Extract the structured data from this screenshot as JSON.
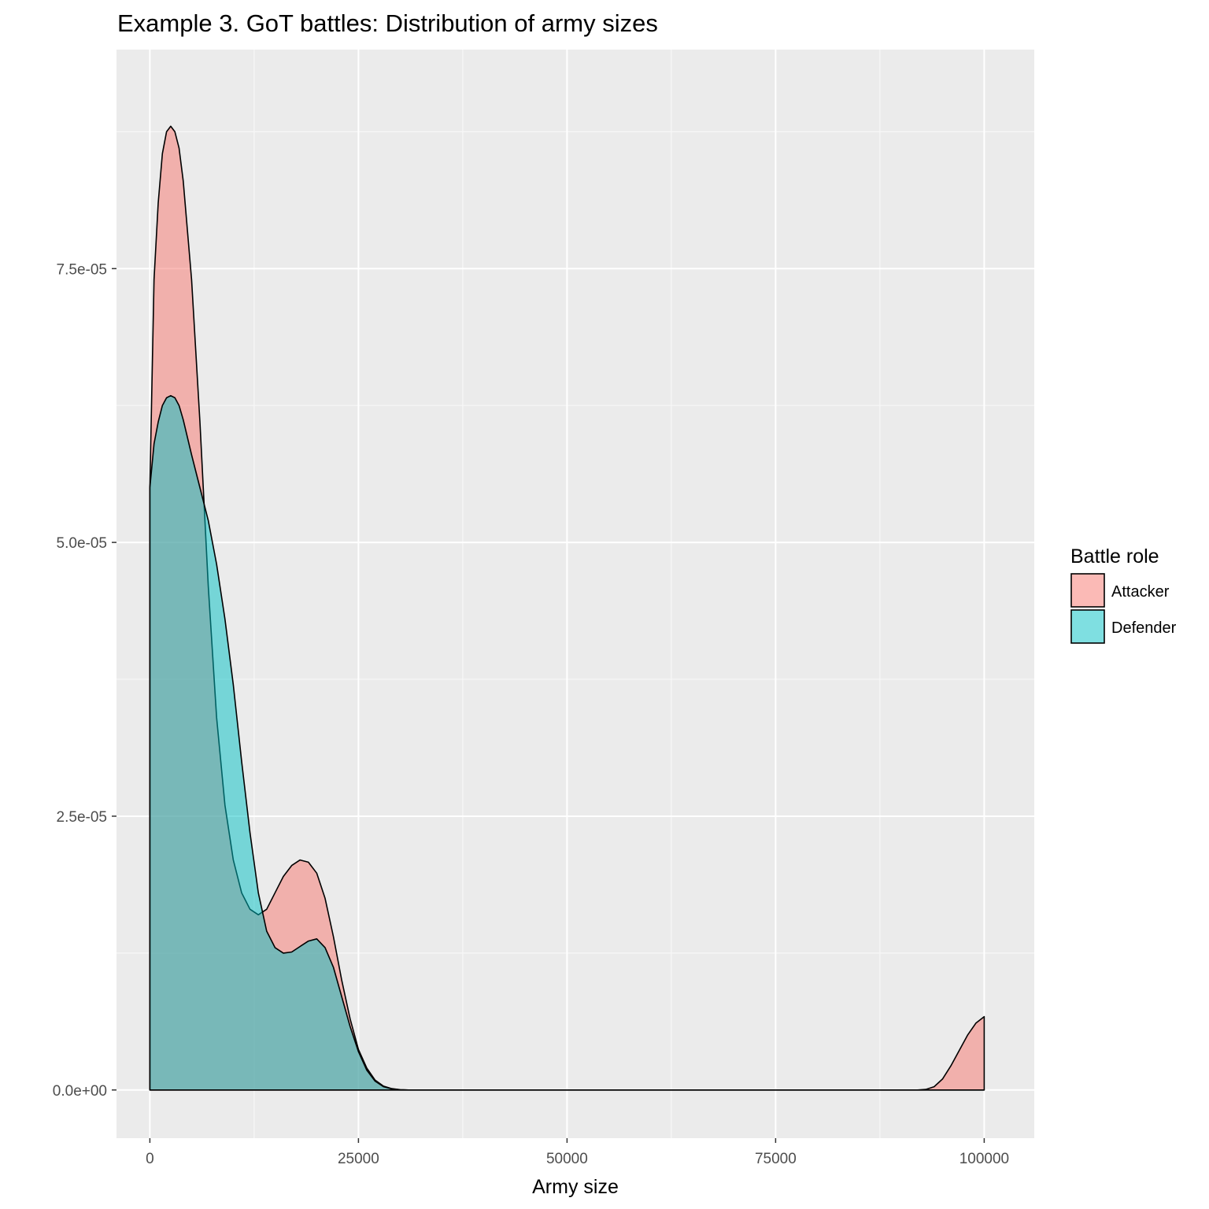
{
  "chart_data": {
    "type": "area",
    "title": "Example 3. GoT battles: Distribution of army sizes",
    "xlabel": "Army size",
    "ylabel": "",
    "xlim": [
      -4000,
      106000
    ],
    "ylim": [
      -4.4e-06,
      9.5e-05
    ],
    "x_ticks": [
      0,
      25000,
      50000,
      75000,
      100000
    ],
    "x_tick_labels": [
      "0",
      "25000",
      "50000",
      "75000",
      "100000"
    ],
    "y_ticks": [
      0,
      2.5e-05,
      5e-05,
      7.5e-05
    ],
    "y_tick_labels": [
      "0.0e+00",
      "2.5e-05",
      "5.0e-05",
      "7.5e-05"
    ],
    "grid": true,
    "legend": {
      "title": "Battle role",
      "position": "right",
      "entries": [
        "Attacker",
        "Defender"
      ]
    },
    "series": [
      {
        "name": "Attacker",
        "color": "#F8766D",
        "points": [
          [
            0,
            5.5e-05
          ],
          [
            500,
            7.4e-05
          ],
          [
            1000,
            8.1e-05
          ],
          [
            1500,
            8.55e-05
          ],
          [
            2000,
            8.75e-05
          ],
          [
            2500,
            8.8e-05
          ],
          [
            3000,
            8.75e-05
          ],
          [
            3500,
            8.6e-05
          ],
          [
            4000,
            8.3e-05
          ],
          [
            5000,
            7.4e-05
          ],
          [
            6000,
            6.1e-05
          ],
          [
            7000,
            4.6e-05
          ],
          [
            8000,
            3.4e-05
          ],
          [
            9000,
            2.6e-05
          ],
          [
            10000,
            2.1e-05
          ],
          [
            11000,
            1.8e-05
          ],
          [
            12000,
            1.65e-05
          ],
          [
            13000,
            1.6e-05
          ],
          [
            14000,
            1.65e-05
          ],
          [
            15000,
            1.8e-05
          ],
          [
            16000,
            1.95e-05
          ],
          [
            17000,
            2.05e-05
          ],
          [
            18000,
            2.1e-05
          ],
          [
            19000,
            2.08e-05
          ],
          [
            20000,
            1.98e-05
          ],
          [
            21000,
            1.75e-05
          ],
          [
            22000,
            1.4e-05
          ],
          [
            23000,
            1e-05
          ],
          [
            24000,
            6.5e-06
          ],
          [
            25000,
            3.7e-06
          ],
          [
            26000,
            2e-06
          ],
          [
            27000,
            9e-07
          ],
          [
            28000,
            3.5e-07
          ],
          [
            29000,
            1.2e-07
          ],
          [
            30000,
            3e-08
          ],
          [
            31000,
            0
          ],
          [
            92000,
            0
          ],
          [
            93000,
            5e-08
          ],
          [
            94000,
            3e-07
          ],
          [
            95000,
            1e-06
          ],
          [
            96000,
            2.2e-06
          ],
          [
            97000,
            3.6e-06
          ],
          [
            98000,
            5e-06
          ],
          [
            99000,
            6.1e-06
          ],
          [
            100000,
            6.7e-06
          ]
        ]
      },
      {
        "name": "Defender",
        "color": "#00BFC4",
        "points": [
          [
            0,
            5.5e-05
          ],
          [
            500,
            5.9e-05
          ],
          [
            1000,
            6.1e-05
          ],
          [
            1500,
            6.25e-05
          ],
          [
            2000,
            6.32e-05
          ],
          [
            2500,
            6.34e-05
          ],
          [
            3000,
            6.32e-05
          ],
          [
            3500,
            6.25e-05
          ],
          [
            4000,
            6.12e-05
          ],
          [
            5000,
            5.8e-05
          ],
          [
            6000,
            5.5e-05
          ],
          [
            7000,
            5.2e-05
          ],
          [
            8000,
            4.8e-05
          ],
          [
            9000,
            4.3e-05
          ],
          [
            10000,
            3.7e-05
          ],
          [
            11000,
            3e-05
          ],
          [
            12000,
            2.35e-05
          ],
          [
            13000,
            1.8e-05
          ],
          [
            14000,
            1.45e-05
          ],
          [
            15000,
            1.3e-05
          ],
          [
            16000,
            1.25e-05
          ],
          [
            17000,
            1.26e-05
          ],
          [
            18000,
            1.31e-05
          ],
          [
            19000,
            1.36e-05
          ],
          [
            20000,
            1.38e-05
          ],
          [
            21000,
            1.3e-05
          ],
          [
            22000,
            1.12e-05
          ],
          [
            23000,
            8.5e-06
          ],
          [
            24000,
            5.8e-06
          ],
          [
            25000,
            3.5e-06
          ],
          [
            26000,
            1.8e-06
          ],
          [
            27000,
            8e-07
          ],
          [
            28000,
            3e-07
          ],
          [
            29000,
            1e-07
          ],
          [
            30000,
            2e-08
          ],
          [
            31000,
            0
          ],
          [
            100000,
            0
          ]
        ]
      }
    ]
  }
}
